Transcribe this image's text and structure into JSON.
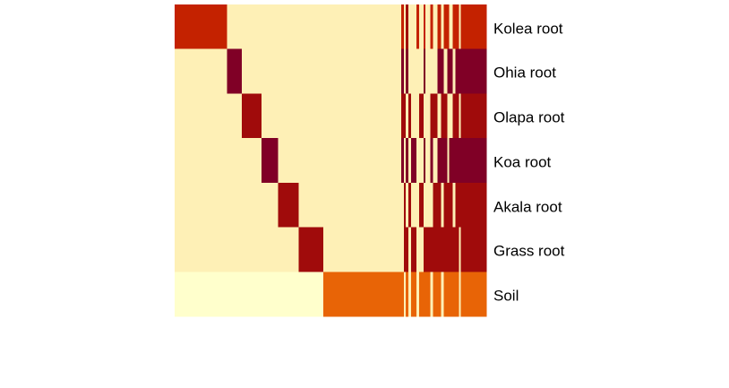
{
  "chart_data": {
    "type": "heatmap",
    "title": "",
    "xlabel": "",
    "ylabel": "",
    "rows": [
      "Kolea root",
      "Ohia root",
      "Olapa root",
      "Koa root",
      "Akala root",
      "Grass root",
      "Soil"
    ],
    "levels": [
      "none",
      "low",
      "medium",
      "high",
      "very high",
      "maximum"
    ],
    "colors": {
      "none": "#FFFFCC",
      "low": "#FEF0B6",
      "medium": "#E86406",
      "high": "#C42200",
      "very high": "#A00B0B",
      "maximum": "#800026"
    },
    "column_blocks": [
      {
        "width": 58,
        "levels": [
          "high",
          "low",
          "low",
          "low",
          "low",
          "low",
          "none"
        ]
      },
      {
        "width": 16,
        "levels": [
          "low",
          "maximum",
          "low",
          "low",
          "low",
          "low",
          "none"
        ]
      },
      {
        "width": 22,
        "levels": [
          "low",
          "low",
          "very high",
          "low",
          "low",
          "low",
          "none"
        ]
      },
      {
        "width": 18,
        "levels": [
          "low",
          "low",
          "low",
          "maximum",
          "low",
          "low",
          "none"
        ]
      },
      {
        "width": 23,
        "levels": [
          "low",
          "low",
          "low",
          "low",
          "very high",
          "low",
          "none"
        ]
      },
      {
        "width": 27,
        "levels": [
          "low",
          "low",
          "low",
          "low",
          "low",
          "very high",
          "none"
        ]
      },
      {
        "width": 86,
        "levels": [
          "low",
          "low",
          "low",
          "low",
          "low",
          "low",
          "medium"
        ]
      },
      {
        "width": 3,
        "levels": [
          "high",
          "maximum",
          "very high",
          "maximum",
          "low",
          "low",
          "medium"
        ]
      },
      {
        "width": 2,
        "levels": [
          "low",
          "low",
          "very high",
          "low",
          "very high",
          "very high",
          "low"
        ]
      },
      {
        "width": 3,
        "levels": [
          "very high",
          "maximum",
          "low",
          "maximum",
          "low",
          "very high",
          "medium"
        ]
      },
      {
        "width": 3,
        "levels": [
          "low",
          "low",
          "very high",
          "low",
          "very high",
          "low",
          "low"
        ]
      },
      {
        "width": 6,
        "levels": [
          "low",
          "low",
          "low",
          "maximum",
          "low",
          "very high",
          "medium"
        ]
      },
      {
        "width": 3,
        "levels": [
          "high",
          "low",
          "low",
          "low",
          "low",
          "low",
          "low"
        ]
      },
      {
        "width": 5,
        "levels": [
          "low",
          "low",
          "very high",
          "low",
          "very high",
          "low",
          "medium"
        ]
      },
      {
        "width": 2,
        "levels": [
          "high",
          "maximum",
          "low",
          "maximum",
          "low",
          "very high",
          "medium"
        ]
      },
      {
        "width": 5,
        "levels": [
          "low",
          "low",
          "low",
          "low",
          "low",
          "very high",
          "medium"
        ]
      },
      {
        "width": 3,
        "levels": [
          "high",
          "low",
          "very high",
          "maximum",
          "low",
          "very high",
          "low"
        ]
      },
      {
        "width": 5,
        "levels": [
          "low",
          "low",
          "very high",
          "low",
          "very high",
          "very high",
          "medium"
        ]
      },
      {
        "width": 4,
        "levels": [
          "high",
          "maximum",
          "low",
          "maximum",
          "very high",
          "very high",
          "medium"
        ]
      },
      {
        "width": 3,
        "levels": [
          "low",
          "maximum",
          "very high",
          "maximum",
          "low",
          "very high",
          "low"
        ]
      },
      {
        "width": 4,
        "levels": [
          "high",
          "low",
          "very high",
          "maximum",
          "very high",
          "very high",
          "medium"
        ]
      },
      {
        "width": 2,
        "levels": [
          "high",
          "maximum",
          "low",
          "low",
          "very high",
          "very high",
          "medium"
        ]
      },
      {
        "width": 4,
        "levels": [
          "low",
          "maximum",
          "low",
          "maximum",
          "very high",
          "very high",
          "medium"
        ]
      },
      {
        "width": 3,
        "levels": [
          "high",
          "low",
          "very high",
          "maximum",
          "low",
          "very high",
          "medium"
        ]
      },
      {
        "width": 4,
        "levels": [
          "high",
          "maximum",
          "very high",
          "maximum",
          "very high",
          "very high",
          "medium"
        ]
      },
      {
        "width": 2,
        "levels": [
          "low",
          "maximum",
          "low",
          "maximum",
          "very high",
          "low",
          "low"
        ]
      },
      {
        "width": 4,
        "levels": [
          "high",
          "maximum",
          "very high",
          "maximum",
          "very high",
          "very high",
          "medium"
        ]
      },
      {
        "width": 24,
        "levels": [
          "high",
          "maximum",
          "very high",
          "maximum",
          "very high",
          "very high",
          "medium"
        ]
      }
    ]
  }
}
